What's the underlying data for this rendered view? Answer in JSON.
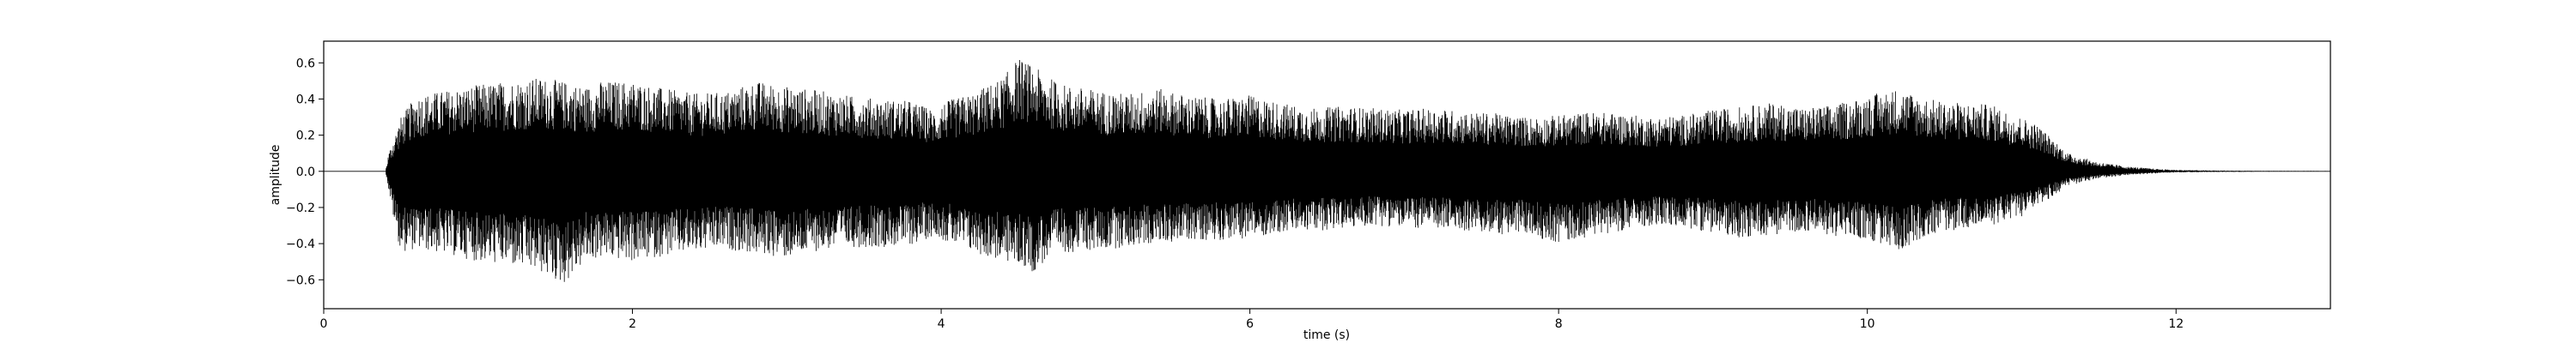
{
  "chart_data": {
    "type": "line",
    "title": "",
    "xlabel": "time (s)",
    "ylabel": "amplitude",
    "xlim": [
      0,
      13
    ],
    "ylim": [
      -0.76,
      0.72
    ],
    "xticks": [
      0,
      2,
      4,
      6,
      8,
      10,
      12
    ],
    "yticks": [
      -0.6,
      -0.4,
      -0.2,
      0.0,
      0.2,
      0.4,
      0.6
    ],
    "xtick_labels": [
      "0",
      "2",
      "4",
      "6",
      "8",
      "10",
      "12"
    ],
    "ytick_labels": [
      "−0.6",
      "−0.4",
      "−0.2",
      "0.0",
      "0.2",
      "0.4",
      "0.6"
    ],
    "grid": false,
    "line_color": "#000000",
    "series": [
      {
        "x": [
          0.0,
          0.4,
          0.42,
          0.46,
          0.5,
          0.6,
          0.8,
          1.0,
          1.2,
          1.4,
          1.55,
          1.7,
          1.8,
          2.0,
          2.2,
          2.4,
          2.6,
          2.8,
          3.0,
          3.2,
          3.4,
          3.6,
          3.8,
          3.98,
          4.0,
          4.2,
          4.4,
          4.5,
          4.6,
          4.7,
          4.8,
          5.0,
          5.2,
          5.4,
          5.6,
          5.8,
          6.0,
          6.2,
          6.4,
          6.6,
          6.8,
          7.0,
          7.2,
          7.4,
          7.6,
          7.8,
          8.0,
          8.2,
          8.4,
          8.6,
          8.8,
          9.0,
          9.2,
          9.4,
          9.6,
          9.8,
          10.0,
          10.2,
          10.4,
          10.6,
          10.8,
          11.0,
          11.1,
          11.2,
          11.3,
          11.5,
          11.7,
          11.9,
          12.0,
          12.2,
          12.5,
          13.0
        ],
        "env_max": [
          0.0,
          0.0,
          0.1,
          0.2,
          0.3,
          0.42,
          0.45,
          0.48,
          0.5,
          0.52,
          0.5,
          0.47,
          0.5,
          0.5,
          0.46,
          0.43,
          0.44,
          0.5,
          0.47,
          0.45,
          0.42,
          0.4,
          0.39,
          0.33,
          0.38,
          0.43,
          0.52,
          0.63,
          0.58,
          0.52,
          0.48,
          0.45,
          0.43,
          0.46,
          0.42,
          0.4,
          0.42,
          0.38,
          0.35,
          0.36,
          0.35,
          0.34,
          0.35,
          0.33,
          0.32,
          0.3,
          0.31,
          0.33,
          0.32,
          0.3,
          0.31,
          0.34,
          0.36,
          0.38,
          0.35,
          0.37,
          0.42,
          0.46,
          0.4,
          0.38,
          0.37,
          0.3,
          0.26,
          0.18,
          0.1,
          0.05,
          0.025,
          0.012,
          0.008,
          0.005,
          0.003,
          0.002
        ],
        "env_min": [
          0.0,
          0.0,
          -0.1,
          -0.3,
          -0.45,
          -0.43,
          -0.46,
          -0.5,
          -0.52,
          -0.56,
          -0.63,
          -0.5,
          -0.48,
          -0.5,
          -0.47,
          -0.45,
          -0.43,
          -0.46,
          -0.48,
          -0.44,
          -0.42,
          -0.42,
          -0.41,
          -0.35,
          -0.38,
          -0.45,
          -0.5,
          -0.52,
          -0.56,
          -0.48,
          -0.45,
          -0.44,
          -0.42,
          -0.4,
          -0.38,
          -0.38,
          -0.37,
          -0.34,
          -0.33,
          -0.32,
          -0.3,
          -0.31,
          -0.32,
          -0.33,
          -0.35,
          -0.35,
          -0.4,
          -0.36,
          -0.33,
          -0.3,
          -0.31,
          -0.34,
          -0.37,
          -0.35,
          -0.33,
          -0.36,
          -0.38,
          -0.44,
          -0.35,
          -0.32,
          -0.3,
          -0.25,
          -0.2,
          -0.14,
          -0.08,
          -0.04,
          -0.02,
          -0.01,
          -0.006,
          -0.004,
          -0.003,
          -0.002
        ]
      }
    ]
  }
}
